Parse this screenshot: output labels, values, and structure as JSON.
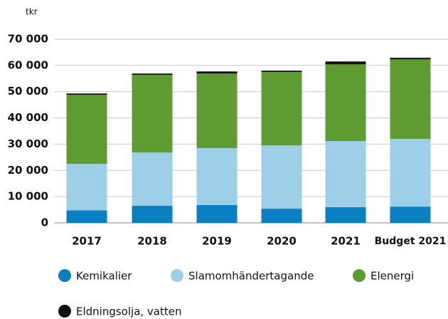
{
  "chart_data": {
    "type": "stacked_bar",
    "y_label": "tkr",
    "categories": [
      "2017",
      "2018",
      "2019",
      "2020",
      "2021",
      "Budget 2021"
    ],
    "series": [
      {
        "name": "Kemikalier",
        "color": "#0a7fc1",
        "values": [
          4800,
          6500,
          6800,
          5400,
          6000,
          6200
        ]
      },
      {
        "name": "Slamomhändertagande",
        "color": "#9dcfe8",
        "values": [
          17700,
          20300,
          21700,
          24100,
          25200,
          25800
        ]
      },
      {
        "name": "Elenergi",
        "color": "#5e9b31",
        "values": [
          26300,
          29600,
          28400,
          28000,
          29200,
          30300
        ]
      },
      {
        "name": "Eldningsolja, vatten",
        "color": "#111111",
        "values": [
          500,
          500,
          800,
          500,
          1100,
          600
        ]
      }
    ],
    "ylim": [
      0,
      70000
    ],
    "yticks": [
      0,
      {
        "value": 10000,
        "label": "10 000"
      },
      {
        "value": 20000,
        "label": "20 000"
      },
      {
        "value": 30000,
        "label": "30 000"
      },
      {
        "value": 40000,
        "label": "40 000"
      },
      {
        "value": 50000,
        "label": "50 000"
      },
      {
        "value": 60000,
        "label": "60 000"
      },
      {
        "value": 70000,
        "label": "70 000"
      }
    ],
    "grid": true
  }
}
